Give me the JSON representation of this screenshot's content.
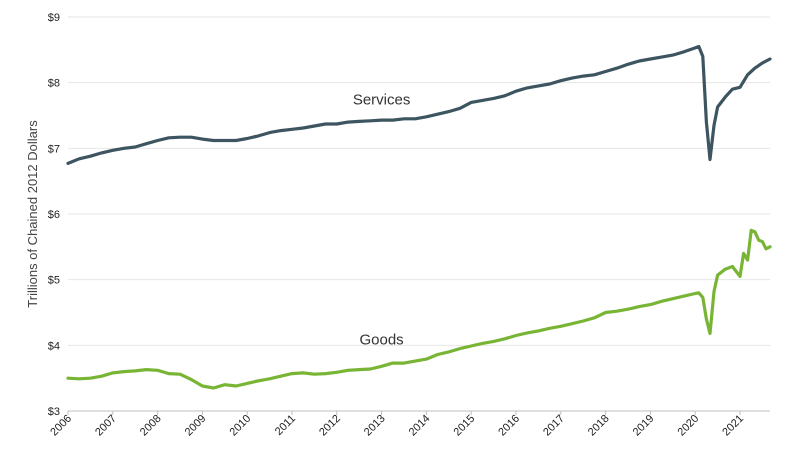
{
  "chart_data": {
    "type": "line",
    "title": "",
    "xlabel": "",
    "ylabel": "Trillions of Chained 2012 Dollars",
    "ylim": [
      3,
      9
    ],
    "xlim": [
      2006.0,
      2021.67
    ],
    "y_ticks": [
      {
        "value": 3,
        "label": "$3"
      },
      {
        "value": 4,
        "label": "$4"
      },
      {
        "value": 5,
        "label": "$5"
      },
      {
        "value": 6,
        "label": "$6"
      },
      {
        "value": 7,
        "label": "$7"
      },
      {
        "value": 8,
        "label": "$8"
      },
      {
        "value": 9,
        "label": "$9"
      }
    ],
    "x_ticks": [
      {
        "value": 2006,
        "label": "2006"
      },
      {
        "value": 2007,
        "label": "2007"
      },
      {
        "value": 2008,
        "label": "2008"
      },
      {
        "value": 2009,
        "label": "2009"
      },
      {
        "value": 2010,
        "label": "2010"
      },
      {
        "value": 2011,
        "label": "2011"
      },
      {
        "value": 2012,
        "label": "2012"
      },
      {
        "value": 2013,
        "label": "2013"
      },
      {
        "value": 2014,
        "label": "2014"
      },
      {
        "value": 2015,
        "label": "2015"
      },
      {
        "value": 2016,
        "label": "2016"
      },
      {
        "value": 2017,
        "label": "2017"
      },
      {
        "value": 2018,
        "label": "2018"
      },
      {
        "value": 2019,
        "label": "2019"
      },
      {
        "value": 2020,
        "label": "2020"
      },
      {
        "value": 2021,
        "label": "2021"
      }
    ],
    "grid": "horizontal",
    "legend": "none",
    "series": [
      {
        "name": "Services",
        "color": "#3d5560",
        "label_at": [
          2013.0,
          7.67
        ],
        "points": [
          [
            2006.0,
            6.77
          ],
          [
            2006.25,
            6.84
          ],
          [
            2006.5,
            6.88
          ],
          [
            2006.75,
            6.93
          ],
          [
            2007.0,
            6.97
          ],
          [
            2007.25,
            7.0
          ],
          [
            2007.5,
            7.02
          ],
          [
            2007.75,
            7.07
          ],
          [
            2008.0,
            7.12
          ],
          [
            2008.25,
            7.16
          ],
          [
            2008.5,
            7.17
          ],
          [
            2008.75,
            7.17
          ],
          [
            2009.0,
            7.14
          ],
          [
            2009.25,
            7.12
          ],
          [
            2009.5,
            7.12
          ],
          [
            2009.75,
            7.12
          ],
          [
            2010.0,
            7.15
          ],
          [
            2010.25,
            7.19
          ],
          [
            2010.5,
            7.24
          ],
          [
            2010.75,
            7.27
          ],
          [
            2011.0,
            7.29
          ],
          [
            2011.25,
            7.31
          ],
          [
            2011.5,
            7.34
          ],
          [
            2011.75,
            7.37
          ],
          [
            2012.0,
            7.37
          ],
          [
            2012.25,
            7.4
          ],
          [
            2012.5,
            7.41
          ],
          [
            2012.75,
            7.42
          ],
          [
            2013.0,
            7.43
          ],
          [
            2013.25,
            7.43
          ],
          [
            2013.5,
            7.45
          ],
          [
            2013.75,
            7.45
          ],
          [
            2014.0,
            7.48
          ],
          [
            2014.25,
            7.52
          ],
          [
            2014.5,
            7.56
          ],
          [
            2014.75,
            7.61
          ],
          [
            2015.0,
            7.7
          ],
          [
            2015.25,
            7.73
          ],
          [
            2015.5,
            7.76
          ],
          [
            2015.75,
            7.8
          ],
          [
            2016.0,
            7.87
          ],
          [
            2016.25,
            7.92
          ],
          [
            2016.5,
            7.95
          ],
          [
            2016.75,
            7.98
          ],
          [
            2017.0,
            8.03
          ],
          [
            2017.25,
            8.07
          ],
          [
            2017.5,
            8.1
          ],
          [
            2017.75,
            8.12
          ],
          [
            2018.0,
            8.17
          ],
          [
            2018.25,
            8.22
          ],
          [
            2018.5,
            8.28
          ],
          [
            2018.75,
            8.33
          ],
          [
            2019.0,
            8.36
          ],
          [
            2019.25,
            8.39
          ],
          [
            2019.5,
            8.42
          ],
          [
            2019.75,
            8.47
          ],
          [
            2020.0,
            8.53
          ],
          [
            2020.08,
            8.55
          ],
          [
            2020.17,
            8.4
          ],
          [
            2020.25,
            7.4
          ],
          [
            2020.33,
            6.83
          ],
          [
            2020.42,
            7.35
          ],
          [
            2020.5,
            7.63
          ],
          [
            2020.67,
            7.78
          ],
          [
            2020.83,
            7.9
          ],
          [
            2021.0,
            7.93
          ],
          [
            2021.17,
            8.12
          ],
          [
            2021.33,
            8.22
          ],
          [
            2021.5,
            8.3
          ],
          [
            2021.67,
            8.36
          ]
        ]
      },
      {
        "name": "Goods",
        "color": "#79b535",
        "label_at": [
          2013.0,
          4.01
        ],
        "points": [
          [
            2006.0,
            3.5
          ],
          [
            2006.25,
            3.49
          ],
          [
            2006.5,
            3.5
          ],
          [
            2006.75,
            3.53
          ],
          [
            2007.0,
            3.58
          ],
          [
            2007.25,
            3.6
          ],
          [
            2007.5,
            3.61
          ],
          [
            2007.75,
            3.63
          ],
          [
            2008.0,
            3.62
          ],
          [
            2008.25,
            3.57
          ],
          [
            2008.5,
            3.56
          ],
          [
            2008.75,
            3.48
          ],
          [
            2009.0,
            3.38
          ],
          [
            2009.25,
            3.35
          ],
          [
            2009.5,
            3.4
          ],
          [
            2009.75,
            3.38
          ],
          [
            2010.0,
            3.42
          ],
          [
            2010.25,
            3.46
          ],
          [
            2010.5,
            3.49
          ],
          [
            2010.75,
            3.53
          ],
          [
            2011.0,
            3.57
          ],
          [
            2011.25,
            3.58
          ],
          [
            2011.5,
            3.56
          ],
          [
            2011.75,
            3.57
          ],
          [
            2012.0,
            3.59
          ],
          [
            2012.25,
            3.62
          ],
          [
            2012.5,
            3.63
          ],
          [
            2012.75,
            3.64
          ],
          [
            2013.0,
            3.68
          ],
          [
            2013.25,
            3.73
          ],
          [
            2013.5,
            3.73
          ],
          [
            2013.75,
            3.76
          ],
          [
            2014.0,
            3.79
          ],
          [
            2014.25,
            3.86
          ],
          [
            2014.5,
            3.9
          ],
          [
            2014.75,
            3.95
          ],
          [
            2015.0,
            3.99
          ],
          [
            2015.25,
            4.03
          ],
          [
            2015.5,
            4.06
          ],
          [
            2015.75,
            4.1
          ],
          [
            2016.0,
            4.15
          ],
          [
            2016.25,
            4.19
          ],
          [
            2016.5,
            4.22
          ],
          [
            2016.75,
            4.26
          ],
          [
            2017.0,
            4.29
          ],
          [
            2017.25,
            4.33
          ],
          [
            2017.5,
            4.37
          ],
          [
            2017.75,
            4.42
          ],
          [
            2018.0,
            4.5
          ],
          [
            2018.25,
            4.52
          ],
          [
            2018.5,
            4.55
          ],
          [
            2018.75,
            4.59
          ],
          [
            2019.0,
            4.62
          ],
          [
            2019.25,
            4.67
          ],
          [
            2019.5,
            4.71
          ],
          [
            2019.75,
            4.75
          ],
          [
            2020.0,
            4.79
          ],
          [
            2020.08,
            4.8
          ],
          [
            2020.17,
            4.73
          ],
          [
            2020.25,
            4.4
          ],
          [
            2020.33,
            4.18
          ],
          [
            2020.42,
            4.82
          ],
          [
            2020.5,
            5.07
          ],
          [
            2020.67,
            5.16
          ],
          [
            2020.83,
            5.2
          ],
          [
            2021.0,
            5.05
          ],
          [
            2021.08,
            5.4
          ],
          [
            2021.17,
            5.3
          ],
          [
            2021.25,
            5.75
          ],
          [
            2021.33,
            5.73
          ],
          [
            2021.42,
            5.6
          ],
          [
            2021.5,
            5.58
          ],
          [
            2021.58,
            5.47
          ],
          [
            2021.67,
            5.5
          ]
        ]
      }
    ]
  }
}
